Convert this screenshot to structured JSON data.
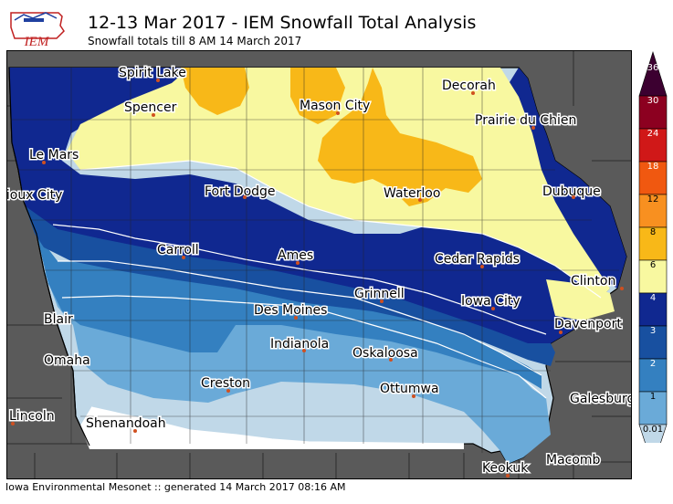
{
  "title": "12-13 Mar 2017 - IEM Snowfall Total Analysis",
  "subtitle": "Snowfall totals till 8 AM 14 March 2017",
  "footer": "Iowa Environmental Mesonet :: generated 14 March 2017 08:16 AM",
  "logo_text": "IEM",
  "legend": {
    "ticks": [
      "36",
      "30",
      "24",
      "18",
      "12",
      "8",
      "6",
      "4",
      "3",
      "2",
      "1",
      "0.01"
    ],
    "colors": [
      "#3c0030",
      "#8c0020",
      "#d01818",
      "#f05810",
      "#f89020",
      "#f8b818",
      "#f8f8a0",
      "#102890",
      "#1850a0",
      "#3480c0",
      "#6aaad8",
      "#c0d8e8"
    ]
  },
  "cities": [
    {
      "name": "Spirit Lake"
    },
    {
      "name": "Spencer"
    },
    {
      "name": "Mason City"
    },
    {
      "name": "Decorah"
    },
    {
      "name": "Prairie du Chien"
    },
    {
      "name": "Le Mars"
    },
    {
      "name": "Sioux City"
    },
    {
      "name": "Fort Dodge"
    },
    {
      "name": "Waterloo"
    },
    {
      "name": "Dubuque"
    },
    {
      "name": "Carroll"
    },
    {
      "name": "Ames"
    },
    {
      "name": "Cedar Rapids"
    },
    {
      "name": "Clinton"
    },
    {
      "name": "Grinnell"
    },
    {
      "name": "Iowa City"
    },
    {
      "name": "Des Moines"
    },
    {
      "name": "Blair"
    },
    {
      "name": "Davenport"
    },
    {
      "name": "Omaha"
    },
    {
      "name": "Indianola"
    },
    {
      "name": "Oskaloosa"
    },
    {
      "name": "Creston"
    },
    {
      "name": "Ottumwa"
    },
    {
      "name": "Galesburg"
    },
    {
      "name": "Lincoln"
    },
    {
      "name": "Shenandoah"
    },
    {
      "name": "Macomb"
    },
    {
      "name": "Keokuk"
    }
  ]
}
